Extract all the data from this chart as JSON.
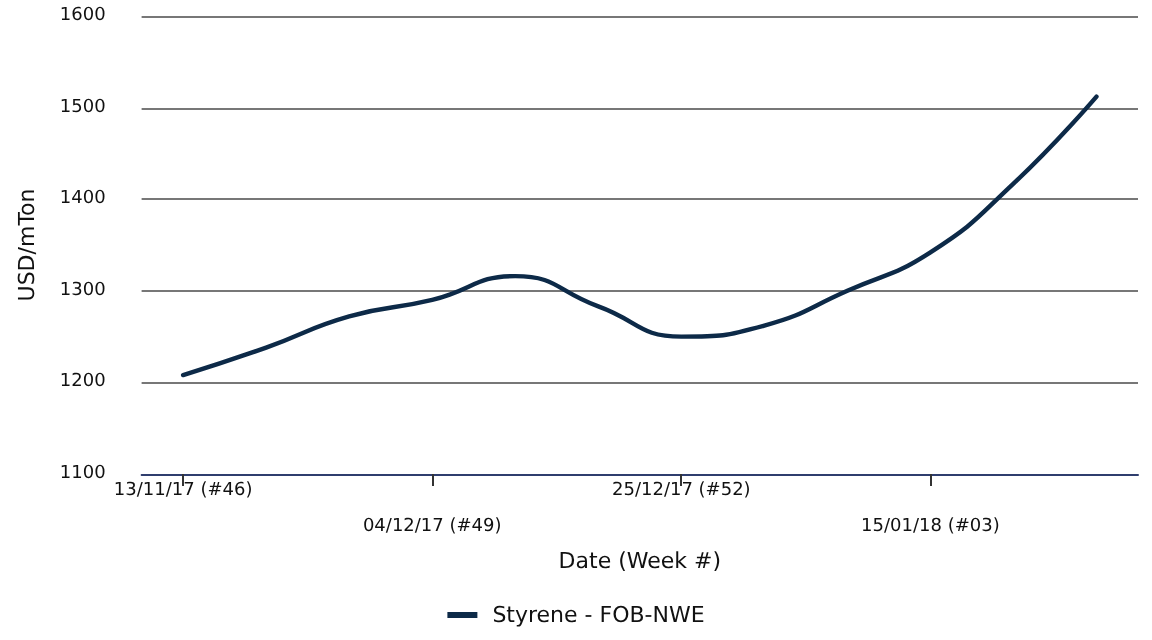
{
  "chart_data": {
    "type": "line",
    "xlabel": "Date (Week #)",
    "ylabel": "USD/mTon",
    "categories": [
      "13/11/17 (#46)",
      null,
      null,
      "04/12/17 (#49)",
      null,
      null,
      "25/12/17 (#52)",
      null,
      null,
      "15/01/18 (#03)",
      null,
      null
    ],
    "series": [
      {
        "name": "Styrene - FOB-NWE",
        "color": "#0d2a48",
        "values": [
          1208,
          1238,
          1272,
          1290,
          1316,
          1283,
          1250,
          1262,
          1300,
          1342,
          1417,
          1512
        ]
      }
    ],
    "ylim": [
      1100,
      1600
    ],
    "yticks": [
      1100,
      1200,
      1300,
      1400,
      1500,
      1600
    ],
    "grid": "y",
    "legend": "bottom",
    "marker": "none",
    "line_style": "solid"
  }
}
